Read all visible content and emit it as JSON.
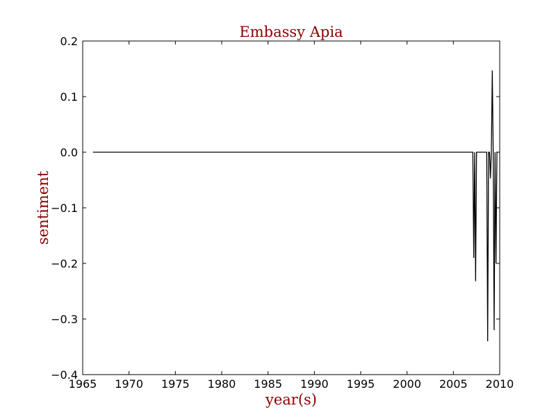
{
  "chart_data": {
    "type": "line",
    "title": "Embassy Apia",
    "xlabel": "year(s)",
    "ylabel": "sentiment",
    "xlim": [
      1965,
      2010
    ],
    "ylim": [
      -0.4,
      0.2
    ],
    "xticks": [
      "1965",
      "1970",
      "1975",
      "1980",
      "1985",
      "1990",
      "1995",
      "2000",
      "2005",
      "2010"
    ],
    "yticks": [
      "−0.4",
      "−0.3",
      "−0.2",
      "−0.1",
      "0.0",
      "0.1",
      "0.2"
    ],
    "xtick_values": [
      1965,
      1970,
      1975,
      1980,
      1985,
      1990,
      1995,
      2000,
      2005,
      2010
    ],
    "ytick_values": [
      -0.4,
      -0.3,
      -0.2,
      -0.1,
      0.0,
      0.1,
      0.2
    ],
    "grid": false,
    "colors": {
      "line": "#000000",
      "label": "#8b0000",
      "frame": "#000000"
    },
    "series": [
      {
        "x": [
          1966.1,
          2007.1,
          2007.2,
          2007.3,
          2007.4,
          2007.5,
          2007.6,
          2008.6,
          2008.7,
          2008.8,
          2008.9,
          2009.0,
          2009.1,
          2009.2,
          2009.3,
          2009.4,
          2009.5,
          2009.6,
          2009.7,
          2009.8,
          2009.9
        ],
        "y": [
          0.0,
          0.0,
          -0.19,
          0.0,
          -0.232,
          0.0,
          0.0,
          0.0,
          -0.34,
          0.0,
          0.0,
          -0.047,
          0.0,
          0.147,
          0.0,
          -0.32,
          0.0,
          -0.2,
          0.0,
          0.0,
          0.0
        ]
      }
    ]
  }
}
